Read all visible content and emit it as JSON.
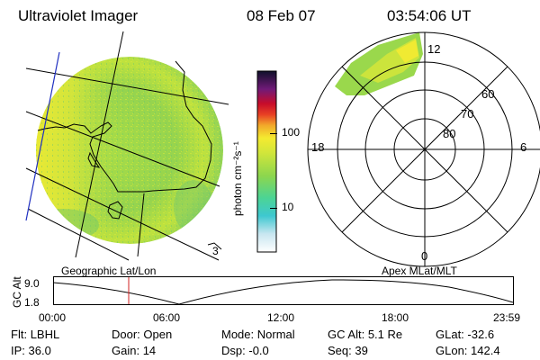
{
  "header": {
    "title": "Ultraviolet Imager",
    "date": "08 Feb 07",
    "time": "03:54:06 UT"
  },
  "geo_panel": {
    "label": "Geographic Lat/Lon",
    "coast_label": "3"
  },
  "colorbar": {
    "unit_label": "photon cm⁻²s⁻¹",
    "ticks": [
      {
        "label": "100",
        "value": 100
      },
      {
        "label": "10",
        "value": 10
      }
    ]
  },
  "polar_panel": {
    "label": "Apex MLat/MLT",
    "mlt_labels": {
      "top": "12",
      "left": "18",
      "right": "6",
      "bottom": "0"
    },
    "lat_labels": [
      "60",
      "70",
      "80"
    ]
  },
  "altitude_plot": {
    "ylabel": "GC Alt",
    "y_ticks": [
      "9.0",
      "1.8"
    ],
    "x_ticks": [
      "00:00",
      "06:00",
      "12:00",
      "18:00",
      "23:59"
    ],
    "current_time_marker": "03:54"
  },
  "status": {
    "flt_label": "Flt:",
    "flt_value": "LBHL",
    "door_label": "Door:",
    "door_value": "Open",
    "mode_label": "Mode:",
    "mode_value": "Normal",
    "gcalt_label": "GC Alt:",
    "gcalt_value": "5.1 Re",
    "glat_label": "GLat:",
    "glat_value": "-32.6",
    "ip_label": "IP:",
    "ip_value": "36.0",
    "gain_label": "Gain:",
    "gain_value": "14",
    "dsp_label": "Dsp:",
    "dsp_value": "-0.0",
    "seq_label": "Seq:",
    "seq_value": "39",
    "glon_label": "GLon:",
    "glon_value": "142.4"
  },
  "colors": {
    "emission_low": "#8fd650",
    "emission_mid": "#c8e63c",
    "emission_high": "#f2ec30",
    "marker": "#d02020"
  }
}
